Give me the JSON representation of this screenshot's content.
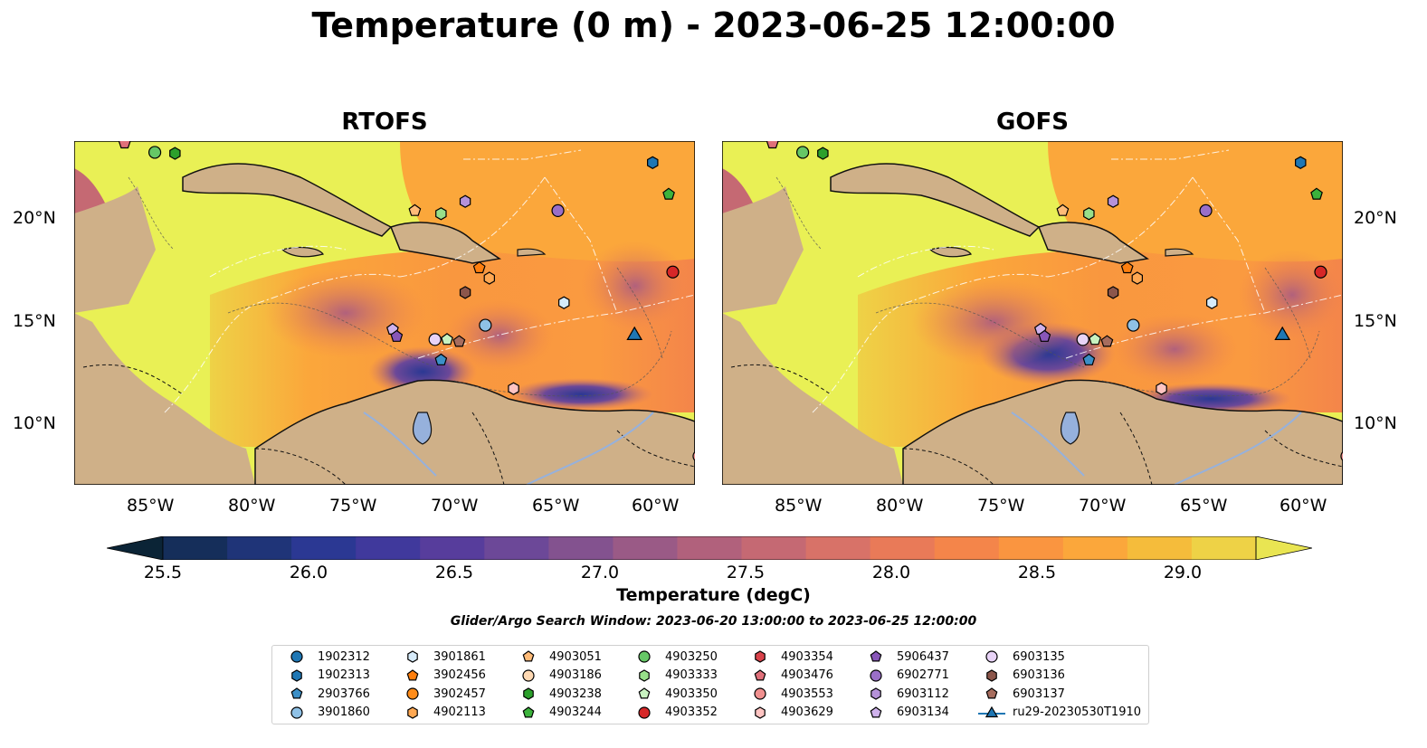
{
  "title": "Temperature (0 m) - 2023-06-25 12:00:00",
  "panels": [
    {
      "title": "RTOFS"
    },
    {
      "title": "GOFS"
    }
  ],
  "axes": {
    "lon_labels": [
      "85°W",
      "80°W",
      "75°W",
      "70°W",
      "65°W",
      "60°W"
    ],
    "lat_labels": [
      "20°N",
      "15°N",
      "10°N"
    ]
  },
  "colorbar": {
    "label": "Temperature (degC)",
    "ticks": [
      "25.5",
      "26.0",
      "26.5",
      "27.0",
      "27.5",
      "28.0",
      "28.5",
      "29.0"
    ],
    "colors": [
      "#0b2436",
      "#152e5a",
      "#1f3478",
      "#2b3893",
      "#40399c",
      "#573d9c",
      "#6c4898",
      "#83528f",
      "#9a5a86",
      "#b1617c",
      "#c56973",
      "#d87268",
      "#e97a58",
      "#f4854a",
      "#fa9540",
      "#fba73b",
      "#f5bc3b",
      "#eed246",
      "#e9e552"
    ]
  },
  "search_window": "Glider/Argo Search Window: 2023-06-20 13:00:00 to 2023-06-25 12:00:00",
  "legend": [
    {
      "label": "1902312",
      "marker": "circle",
      "color": "#1f77b4"
    },
    {
      "label": "1902313",
      "marker": "hexagon",
      "color": "#1f77b4"
    },
    {
      "label": "2903766",
      "marker": "pentagon",
      "color": "#3b8fc7"
    },
    {
      "label": "3901860",
      "marker": "circle",
      "color": "#8fc1e6"
    },
    {
      "label": "3901861",
      "marker": "hexagon",
      "color": "#d6ebfa"
    },
    {
      "label": "3902456",
      "marker": "pentagon",
      "color": "#ff7f0e"
    },
    {
      "label": "3902457",
      "marker": "circle",
      "color": "#ff8c1a"
    },
    {
      "label": "4902113",
      "marker": "hexagon",
      "color": "#ffa852"
    },
    {
      "label": "4903051",
      "marker": "pentagon",
      "color": "#ffbb78"
    },
    {
      "label": "4903186",
      "marker": "circle",
      "color": "#ffd9b3"
    },
    {
      "label": "4903238",
      "marker": "hexagon",
      "color": "#2ca02c"
    },
    {
      "label": "4903244",
      "marker": "pentagon",
      "color": "#3cb33c"
    },
    {
      "label": "4903250",
      "marker": "circle",
      "color": "#66c766"
    },
    {
      "label": "4903333",
      "marker": "hexagon",
      "color": "#98df8a"
    },
    {
      "label": "4903350",
      "marker": "pentagon",
      "color": "#c8f2c0"
    },
    {
      "label": "4903352",
      "marker": "circle",
      "color": "#d62728"
    },
    {
      "label": "4903354",
      "marker": "hexagon",
      "color": "#d9424a"
    },
    {
      "label": "4903476",
      "marker": "pentagon",
      "color": "#e0707a"
    },
    {
      "label": "4903553",
      "marker": "circle",
      "color": "#f0908f"
    },
    {
      "label": "4903629",
      "marker": "hexagon",
      "color": "#ffc4c2"
    },
    {
      "label": "5906437",
      "marker": "pentagon",
      "color": "#8856b8"
    },
    {
      "label": "6902771",
      "marker": "circle",
      "color": "#9a6fc8"
    },
    {
      "label": "6903112",
      "marker": "hexagon",
      "color": "#b592d9"
    },
    {
      "label": "6903134",
      "marker": "pentagon",
      "color": "#cfb2ec"
    },
    {
      "label": "6903135",
      "marker": "circle",
      "color": "#e8d3f7"
    },
    {
      "label": "6903136",
      "marker": "hexagon",
      "color": "#8c564b"
    },
    {
      "label": "6903137",
      "marker": "pentagon",
      "color": "#a76d5e"
    },
    {
      "label": "ru29-20230530T1910",
      "marker": "triangle-line",
      "color": "#1f77b4"
    }
  ],
  "floats": [
    {
      "id": "4903250",
      "lon": -85.0,
      "lat": 23.45
    },
    {
      "id": "4903238",
      "lon": -84.0,
      "lat": 23.4
    },
    {
      "id": "1902313",
      "lon": -60.3,
      "lat": 22.95
    },
    {
      "id": "4903244",
      "lon": -59.5,
      "lat": 21.4
    },
    {
      "id": "6903112",
      "lon": -69.6,
      "lat": 21.05
    },
    {
      "id": "4903051",
      "lon": -72.1,
      "lat": 20.6
    },
    {
      "id": "4903333",
      "lon": -70.8,
      "lat": 20.45
    },
    {
      "id": "6902771",
      "lon": -65.0,
      "lat": 20.6
    },
    {
      "id": "3902456",
      "lon": -68.9,
      "lat": 17.8
    },
    {
      "id": "4902113",
      "lon": -68.4,
      "lat": 17.3
    },
    {
      "id": "4903352",
      "lon": -59.3,
      "lat": 17.6
    },
    {
      "id": "6903136",
      "lon": -69.6,
      "lat": 16.6
    },
    {
      "id": "3901861",
      "lon": -64.7,
      "lat": 16.1
    },
    {
      "id": "3901860",
      "lon": -68.6,
      "lat": 15.0
    },
    {
      "id": "6903134",
      "lon": -73.2,
      "lat": 14.8
    },
    {
      "id": "5906437",
      "lon": -73.0,
      "lat": 14.45
    },
    {
      "id": "6903135",
      "lon": -71.1,
      "lat": 14.3
    },
    {
      "id": "4903350",
      "lon": -70.5,
      "lat": 14.3
    },
    {
      "id": "6903137",
      "lon": -69.9,
      "lat": 14.2
    },
    {
      "id": "2903766",
      "lon": -70.8,
      "lat": 13.3
    },
    {
      "id": "4903629",
      "lon": -67.2,
      "lat": 11.9
    },
    {
      "id": "ru29-20230530T1910",
      "lon": -61.2,
      "lat": 14.5
    },
    {
      "id": "4903476",
      "lon": -86.5,
      "lat": 23.9
    },
    {
      "id": "4903553",
      "lon": -58.0,
      "lat": 8.6
    }
  ]
}
